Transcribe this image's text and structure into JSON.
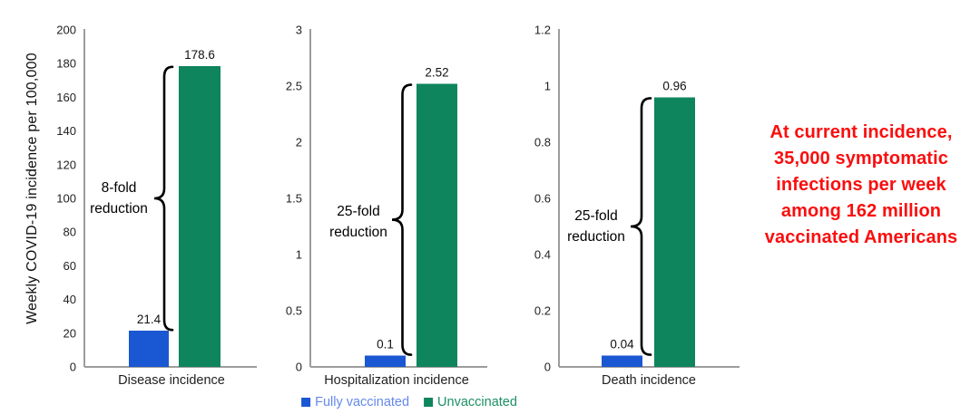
{
  "colors": {
    "fully_vaccinated": "#1a57d2",
    "unvaccinated": "#0e855c",
    "legend_fully_text": "#6488ec",
    "legend_unvax_text": "#1b8f64",
    "axis": "#9c9c9c",
    "brace": "#000000",
    "key_message": "#fa0e0e"
  },
  "legend": {
    "items": [
      {
        "label": "Fully vaccinated",
        "swatch_color_key": "fully_vaccinated",
        "text_color_key": "legend_fully_text"
      },
      {
        "label": "Unvaccinated",
        "swatch_color_key": "unvaccinated",
        "text_color_key": "legend_unvax_text"
      }
    ]
  },
  "key_message": {
    "lines": [
      "At current incidence,",
      "35,000 symptomatic",
      "infections per week",
      "among 162 million",
      "vaccinated Americans"
    ]
  },
  "chart_data": [
    {
      "type": "bar",
      "title": "Disease incidence",
      "xlabel": "Disease incidence",
      "ylabel": "Weekly COVID-19 incidence per 100,000",
      "ylim": [
        0,
        200
      ],
      "yticks": [
        0,
        20,
        40,
        60,
        80,
        100,
        120,
        140,
        160,
        180,
        200
      ],
      "ytick_labels": [
        "0",
        "20",
        "40",
        "60",
        "80",
        "100",
        "120",
        "140",
        "160",
        "180",
        "200"
      ],
      "categories": [
        "Fully vaccinated",
        "Unvaccinated"
      ],
      "series": [
        {
          "name": "Fully vaccinated",
          "value": 21.4,
          "label": "21.4",
          "color_key": "fully_vaccinated"
        },
        {
          "name": "Unvaccinated",
          "value": 178.6,
          "label": "178.6",
          "color_key": "unvaccinated"
        }
      ],
      "annotation": {
        "lines": [
          "8-fold",
          "reduction"
        ]
      },
      "grid": false,
      "legend_position": "none"
    },
    {
      "type": "bar",
      "title": "Hospitalization incidence",
      "xlabel": "Hospitalization incidence",
      "ylabel": "",
      "ylim": [
        0,
        3
      ],
      "yticks": [
        0,
        0.5,
        1,
        1.5,
        2,
        2.5,
        3
      ],
      "ytick_labels": [
        "0",
        "0.5",
        "1",
        "1.5",
        "2",
        "2.5",
        "3"
      ],
      "categories": [
        "Fully vaccinated",
        "Unvaccinated"
      ],
      "series": [
        {
          "name": "Fully vaccinated",
          "value": 0.1,
          "label": "0.1",
          "color_key": "fully_vaccinated"
        },
        {
          "name": "Unvaccinated",
          "value": 2.52,
          "label": "2.52",
          "color_key": "unvaccinated"
        }
      ],
      "annotation": {
        "lines": [
          "25-fold",
          "reduction"
        ]
      },
      "grid": false,
      "legend_position": "bottom"
    },
    {
      "type": "bar",
      "title": "Death incidence",
      "xlabel": "Death incidence",
      "ylabel": "",
      "ylim": [
        0,
        1.2
      ],
      "yticks": [
        0,
        0.2,
        0.4,
        0.6,
        0.8,
        1,
        1.2
      ],
      "ytick_labels": [
        "0",
        "0.2",
        "0.4",
        "0.6",
        "0.8",
        "1",
        "1.2"
      ],
      "categories": [
        "Fully vaccinated",
        "Unvaccinated"
      ],
      "series": [
        {
          "name": "Fully vaccinated",
          "value": 0.04,
          "label": "0.04",
          "color_key": "fully_vaccinated"
        },
        {
          "name": "Unvaccinated",
          "value": 0.96,
          "label": "0.96",
          "color_key": "unvaccinated"
        }
      ],
      "annotation": {
        "lines": [
          "25-fold",
          "reduction"
        ]
      },
      "grid": false,
      "legend_position": "none"
    }
  ]
}
